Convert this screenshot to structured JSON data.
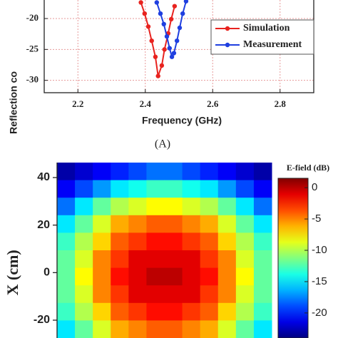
{
  "chart_data": [
    {
      "type": "line",
      "xlabel": "Frequency (GHz)",
      "ylabel": "Reflection co",
      "xlim": [
        2.1,
        2.9
      ],
      "ylim": [
        -32,
        -17
      ],
      "xticks": [
        2.2,
        2.4,
        2.6,
        2.8
      ],
      "yticks": [
        -30,
        -25,
        -20
      ],
      "grid": true,
      "legend": "right",
      "series": [
        {
          "name": "Simulation",
          "color": "#e8231f",
          "x": [
            2.387,
            2.398,
            2.409,
            2.419,
            2.43,
            2.438,
            2.449,
            2.457,
            2.468,
            2.477,
            2.487
          ],
          "values": [
            -17.4,
            -19.2,
            -21.3,
            -23.6,
            -26.2,
            -29.3,
            -27.6,
            -25,
            -22.4,
            -20.1,
            -18
          ]
        },
        {
          "name": "Measurement",
          "color": "#1f3fe0",
          "x": [
            2.434,
            2.445,
            2.455,
            2.464,
            2.472,
            2.479,
            2.485,
            2.494,
            2.502,
            2.511,
            2.521
          ],
          "values": [
            -17.4,
            -19.2,
            -20.9,
            -22.9,
            -24.8,
            -26.2,
            -25.6,
            -23.6,
            -21.5,
            -19.2,
            -17.2
          ]
        }
      ]
    },
    {
      "type": "heatmap",
      "caption": "(A)",
      "ylabel": "X (cm)",
      "ylim": [
        -27.5,
        46.3
      ],
      "yticks": [
        -20,
        0,
        20,
        40
      ],
      "colormap": "jet",
      "zlim": [
        -24,
        1.5
      ],
      "colorbar_title": "E-field (dB)",
      "colorbar_ticks": [
        -20,
        -15,
        -10,
        -5,
        0
      ],
      "z": [
        [
          -23,
          -22,
          -21,
          -20,
          -19,
          -18,
          -18,
          -19,
          -20,
          -21,
          -22,
          -23
        ],
        [
          -21,
          -19,
          -17,
          -15,
          -14,
          -13,
          -13,
          -14,
          -15,
          -17,
          -19,
          -21
        ],
        [
          -18,
          -15,
          -12,
          -10,
          -9,
          -8,
          -8,
          -9,
          -10,
          -12,
          -15,
          -18
        ],
        [
          -15,
          -12,
          -9,
          -6,
          -5,
          -4,
          -4,
          -5,
          -6,
          -9,
          -12,
          -15
        ],
        [
          -13,
          -10,
          -7,
          -4,
          -3,
          -2,
          -2,
          -3,
          -4,
          -7,
          -10,
          -13
        ],
        [
          -12,
          -9,
          -5,
          -3,
          -1,
          -1,
          -1,
          -1,
          -3,
          -5,
          -9,
          -12
        ],
        [
          -12,
          -8,
          -5,
          -2,
          -1,
          0,
          0,
          -1,
          -2,
          -5,
          -8,
          -12
        ],
        [
          -12,
          -9,
          -5,
          -3,
          -1,
          -1,
          -1,
          -1,
          -3,
          -5,
          -9,
          -12
        ],
        [
          -13,
          -10,
          -7,
          -4,
          -3,
          -2,
          -2,
          -3,
          -4,
          -7,
          -10,
          -13
        ],
        [
          -15,
          -12,
          -9,
          -6,
          -5,
          -4,
          -4,
          -5,
          -6,
          -9,
          -12,
          -15
        ]
      ]
    }
  ]
}
